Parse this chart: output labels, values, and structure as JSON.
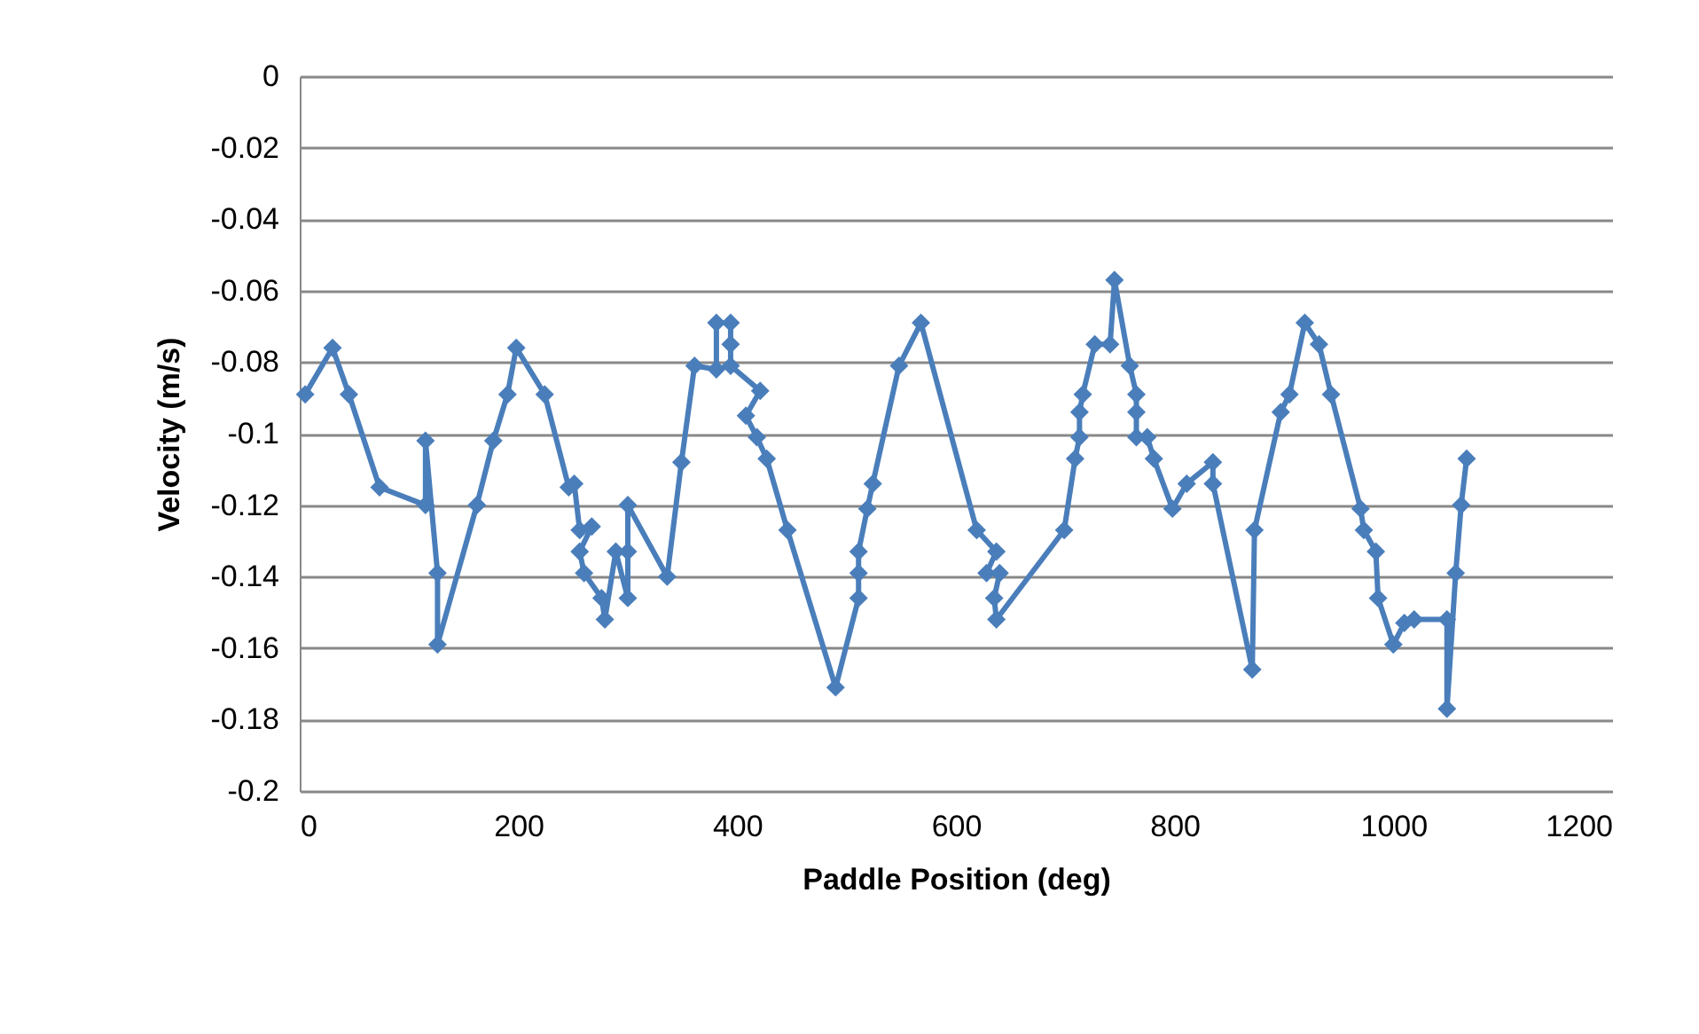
{
  "chart_data": {
    "type": "line",
    "xlabel": "Paddle Position (deg)",
    "ylabel": "Velocity (m/s)",
    "xlim": [
      0,
      1200
    ],
    "xticks": [
      0,
      200,
      400,
      600,
      800,
      1000,
      1200
    ],
    "ylim": [
      -0.2,
      0
    ],
    "yticks": [
      -0.2,
      -0.18,
      -0.16,
      -0.14,
      -0.12,
      -0.1,
      -0.08,
      -0.06,
      -0.04,
      -0.02,
      0
    ],
    "grid": "y",
    "legend": false,
    "marker": "diamond",
    "line_style": "solid",
    "series": [
      {
        "color": "#4a7ebb",
        "x": [
          5,
          30,
          45,
          73,
          115,
          115,
          126,
          126,
          162,
          177,
          190,
          198,
          224,
          246,
          251,
          256,
          267,
          256,
          260,
          276,
          279,
          289,
          300,
          300,
          300,
          336,
          349,
          361,
          381,
          381,
          394,
          394,
          394,
          421,
          408,
          418,
          427,
          446,
          490,
          511,
          511,
          511,
          519,
          524,
          548,
          568,
          619,
          637,
          628,
          640,
          635,
          637,
          699,
          709,
          713,
          713,
          716,
          727,
          741,
          745,
          759,
          765,
          765,
          765,
          775,
          781,
          798,
          811,
          835,
          835,
          871,
          873,
          897,
          905,
          919,
          932,
          943,
          970,
          973,
          984,
          986,
          1000,
          1010,
          1019,
          1049,
          1049,
          1057,
          1062,
          1067
        ],
        "values": [
          -0.089,
          -0.076,
          -0.089,
          -0.115,
          -0.12,
          -0.102,
          -0.139,
          -0.159,
          -0.12,
          -0.102,
          -0.089,
          -0.076,
          -0.089,
          -0.115,
          -0.114,
          -0.127,
          -0.126,
          -0.133,
          -0.139,
          -0.146,
          -0.152,
          -0.133,
          -0.146,
          -0.133,
          -0.12,
          -0.14,
          -0.108,
          -0.081,
          -0.082,
          -0.069,
          -0.069,
          -0.075,
          -0.081,
          -0.088,
          -0.095,
          -0.101,
          -0.107,
          -0.127,
          -0.171,
          -0.146,
          -0.139,
          -0.133,
          -0.121,
          -0.114,
          -0.081,
          -0.069,
          -0.127,
          -0.133,
          -0.139,
          -0.139,
          -0.146,
          -0.152,
          -0.127,
          -0.107,
          -0.101,
          -0.094,
          -0.089,
          -0.075,
          -0.075,
          -0.057,
          -0.081,
          -0.089,
          -0.094,
          -0.101,
          -0.101,
          -0.107,
          -0.121,
          -0.114,
          -0.108,
          -0.114,
          -0.166,
          -0.127,
          -0.094,
          -0.089,
          -0.069,
          -0.075,
          -0.089,
          -0.121,
          -0.127,
          -0.133,
          -0.146,
          -0.159,
          -0.153,
          -0.152,
          -0.152,
          -0.177,
          -0.139,
          -0.12,
          -0.107
        ]
      }
    ]
  }
}
